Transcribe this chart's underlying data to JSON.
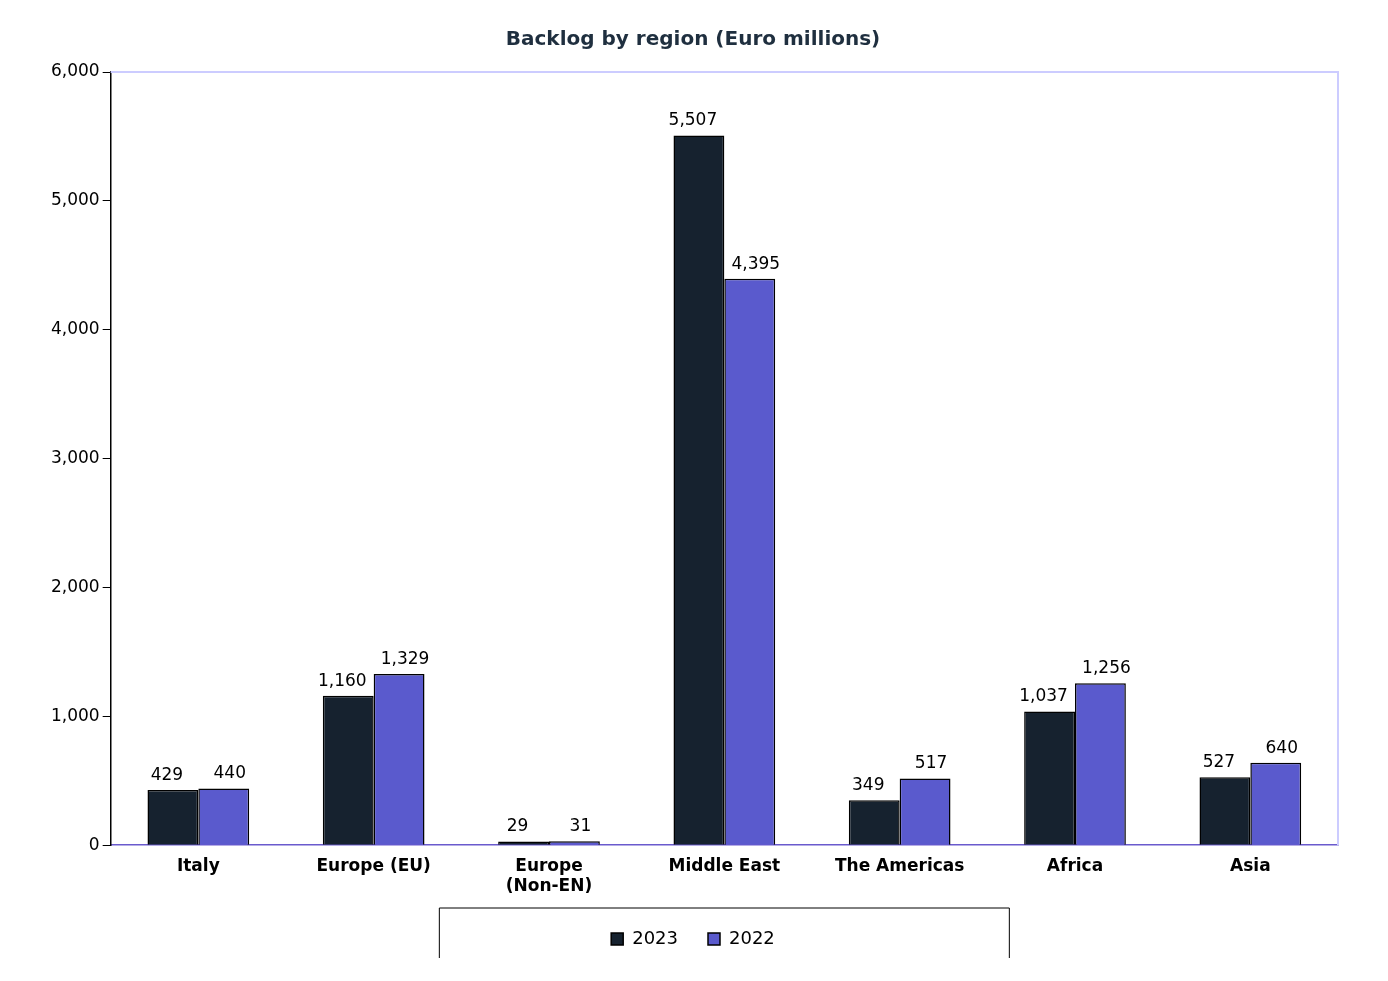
{
  "chart_data": {
    "type": "bar",
    "title": "Backlog by region (Euro millions)",
    "categories": [
      "Italy",
      "Europe (EU)",
      "Europe (Non-EN)",
      "Middle East",
      "The Americas",
      "Africa",
      "Asia"
    ],
    "series": [
      {
        "name": "2023",
        "color": "#16222f",
        "values": [
          429,
          1160,
          29,
          5507,
          349,
          1037,
          527
        ],
        "value_labels": [
          "429",
          "1,160",
          "29",
          "5,507",
          "349",
          "1,037",
          "527"
        ]
      },
      {
        "name": "2022",
        "color": "#5a5acd",
        "values": [
          440,
          1329,
          31,
          4395,
          517,
          1256,
          640
        ],
        "value_labels": [
          "440",
          "1,329",
          "31",
          "4,395",
          "517",
          "1,256",
          "640"
        ]
      }
    ],
    "ylim": [
      0,
      6000
    ],
    "yticks": [
      0,
      {
        "value": 1000,
        "label": "1,000"
      },
      {
        "value": 2000,
        "label": "2,000"
      },
      {
        "value": 3000,
        "label": "3,000"
      },
      {
        "value": 4000,
        "label": "4,000"
      },
      {
        "value": 5000,
        "label": "5,000"
      },
      {
        "value": 6000,
        "label": "6,000"
      }
    ],
    "grid": false,
    "legend": "bottom"
  }
}
